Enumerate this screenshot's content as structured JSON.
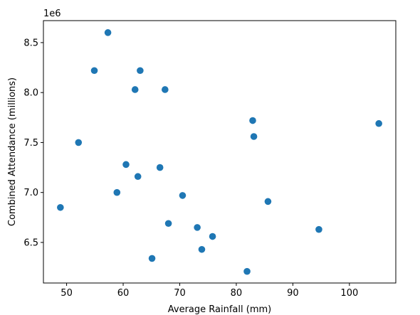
{
  "chart_data": {
    "type": "scatter",
    "title": "",
    "xlabel": "Average Rainfall (mm)",
    "ylabel": "Combined Attendance (millions)",
    "y_offset_text": "1e6",
    "xlim": [
      45.9,
      108.2
    ],
    "ylim": [
      6094000,
      8720000
    ],
    "x_ticks": [
      50,
      60,
      70,
      80,
      90,
      100
    ],
    "x_tick_labels": [
      "50",
      "60",
      "70",
      "80",
      "90",
      "100"
    ],
    "y_ticks": [
      6500000,
      7000000,
      7500000,
      8000000,
      8500000
    ],
    "y_tick_labels": [
      "6.5",
      "7.0",
      "7.5",
      "8.0",
      "8.5"
    ],
    "grid": false,
    "marker_color": "#1f77b4",
    "points": [
      {
        "x": 48.9,
        "y": 6850000
      },
      {
        "x": 52.1,
        "y": 7500000
      },
      {
        "x": 54.9,
        "y": 8220000
      },
      {
        "x": 57.3,
        "y": 8600000
      },
      {
        "x": 58.9,
        "y": 7000000
      },
      {
        "x": 60.5,
        "y": 7280000
      },
      {
        "x": 62.1,
        "y": 8030000
      },
      {
        "x": 62.6,
        "y": 7160000
      },
      {
        "x": 63.0,
        "y": 8220000
      },
      {
        "x": 65.1,
        "y": 6340000
      },
      {
        "x": 66.5,
        "y": 7250000
      },
      {
        "x": 67.4,
        "y": 8030000
      },
      {
        "x": 68.0,
        "y": 6690000
      },
      {
        "x": 70.5,
        "y": 6970000
      },
      {
        "x": 73.1,
        "y": 6650000
      },
      {
        "x": 73.9,
        "y": 6430000
      },
      {
        "x": 75.8,
        "y": 6560000
      },
      {
        "x": 81.9,
        "y": 6210000
      },
      {
        "x": 82.9,
        "y": 7720000
      },
      {
        "x": 83.1,
        "y": 7560000
      },
      {
        "x": 85.6,
        "y": 6910000
      },
      {
        "x": 94.6,
        "y": 6630000
      },
      {
        "x": 105.2,
        "y": 7690000
      }
    ]
  }
}
